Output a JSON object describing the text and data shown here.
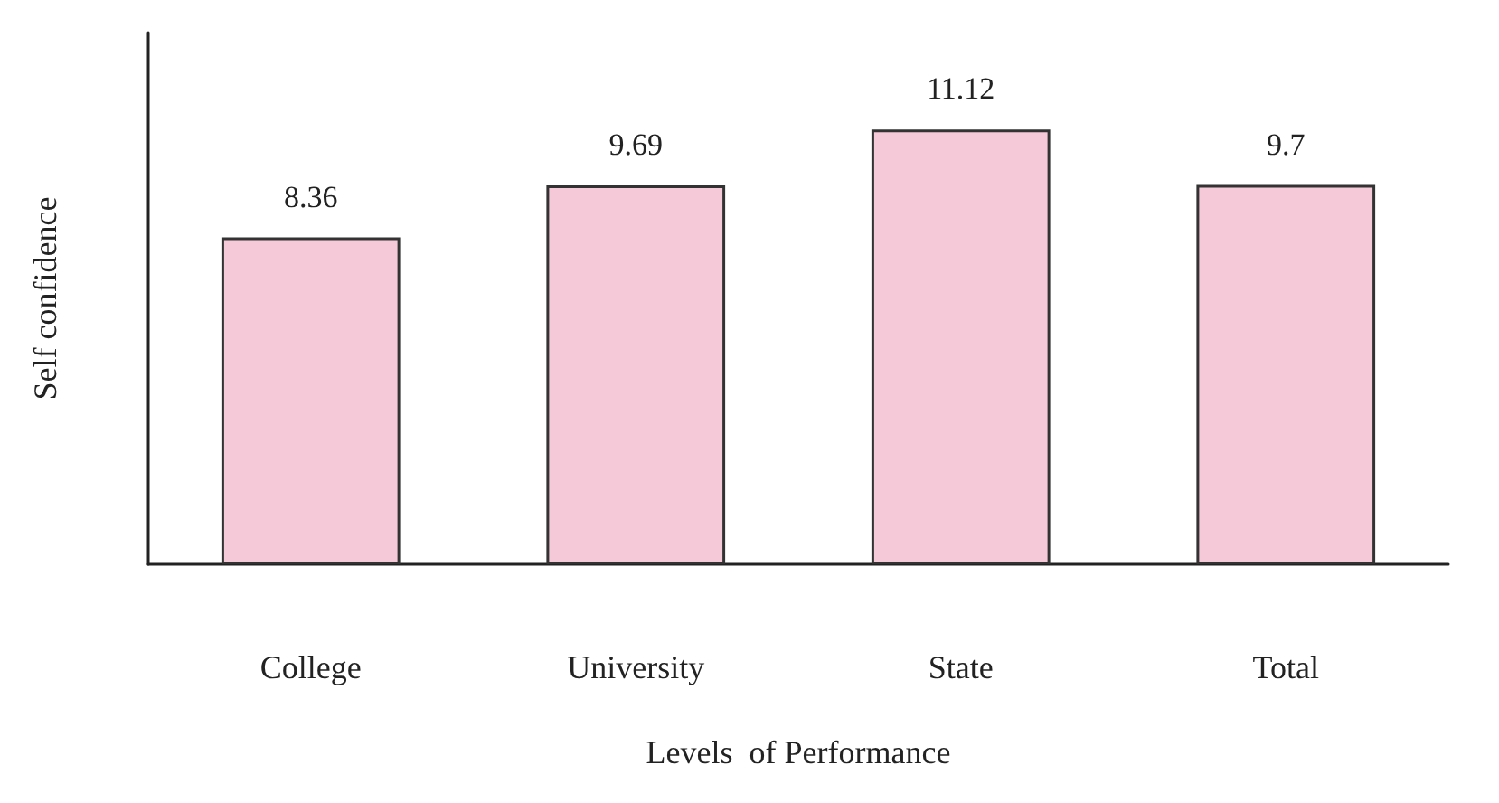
{
  "chart_data": {
    "type": "bar",
    "xlabel": "Levels  of Performance",
    "ylabel": "Self confidence",
    "categories": [
      "College",
      "University",
      "State",
      "Total"
    ],
    "values": [
      8.36,
      9.69,
      11.12,
      9.7
    ],
    "color": "#f6c9d9",
    "ylim": [
      0,
      13.6
    ],
    "data_labels": true
  }
}
